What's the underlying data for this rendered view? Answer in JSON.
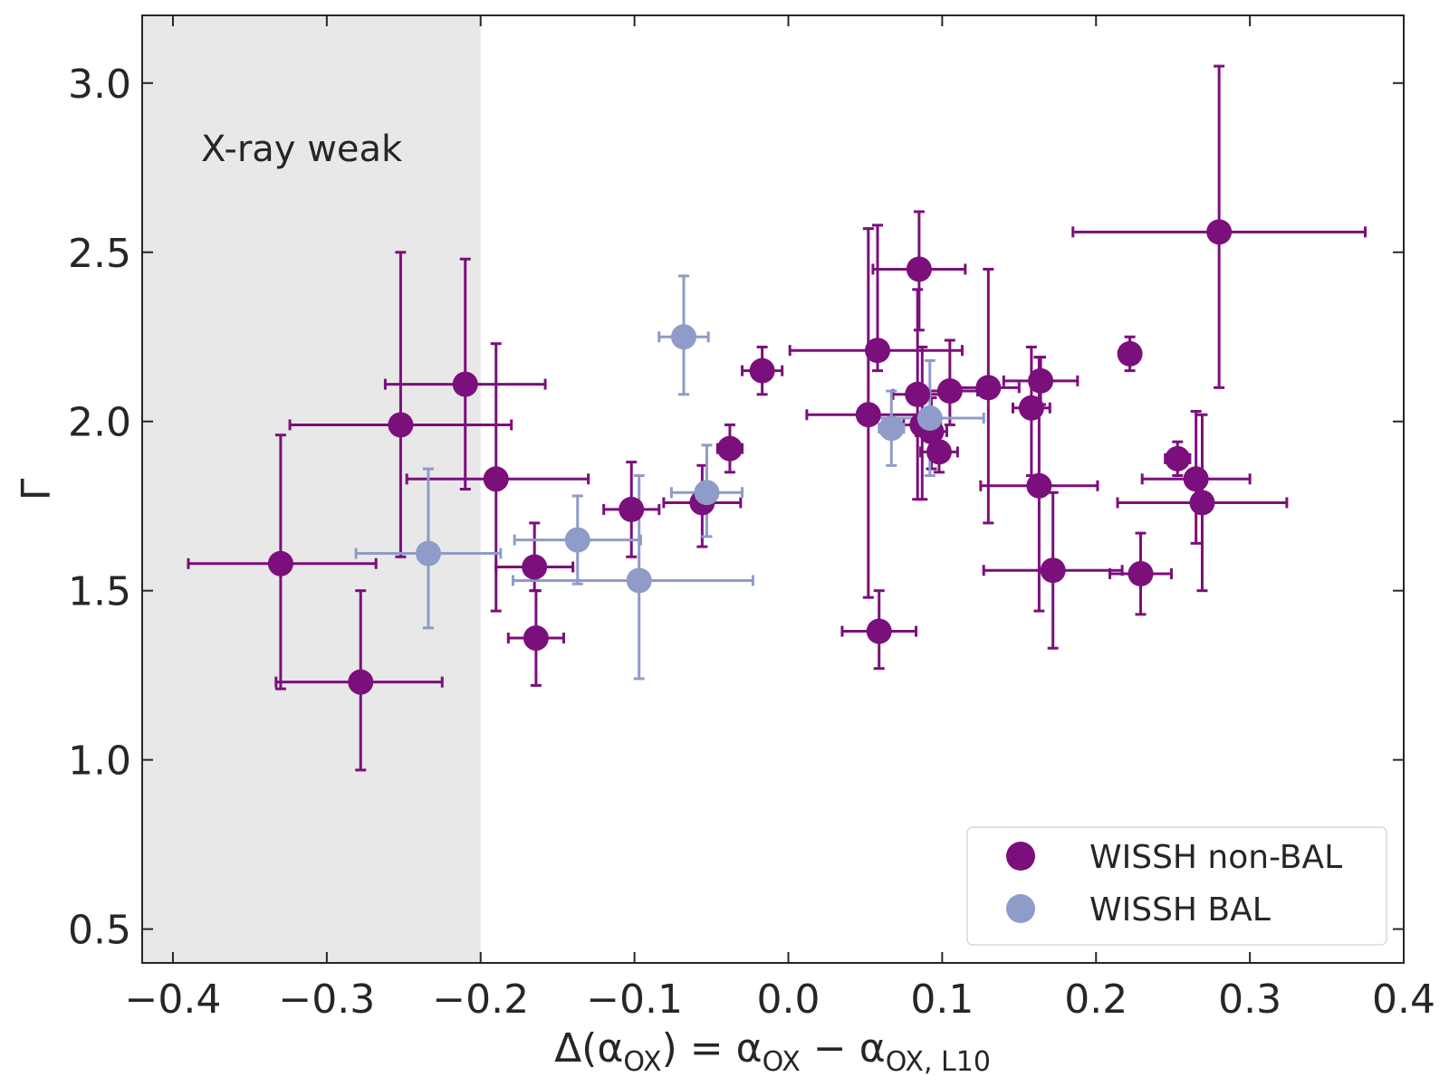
{
  "chart_data": {
    "type": "scatter",
    "title": "",
    "xlabel": {
      "main": "Δ(α",
      "sub1": "OX",
      "mid": ") = α",
      "sub2": "OX",
      "mid2": " − α",
      "sub3": "OX, L10"
    },
    "ylabel": "Γ",
    "xlim": [
      -0.42,
      0.4
    ],
    "ylim": [
      0.4,
      3.2
    ],
    "xticks": [
      -0.4,
      -0.3,
      -0.2,
      -0.1,
      0.0,
      0.1,
      0.2,
      0.3,
      0.4
    ],
    "xtick_labels": [
      "−0.4",
      "−0.3",
      "−0.2",
      "−0.1",
      "0.0",
      "0.1",
      "0.2",
      "0.3",
      "0.4"
    ],
    "yticks": [
      0.5,
      1.0,
      1.5,
      2.0,
      2.5,
      3.0
    ],
    "ytick_labels": [
      "0.5",
      "1.0",
      "1.5",
      "2.0",
      "2.5",
      "3.0"
    ],
    "grid": false,
    "shaded_region": {
      "x": [
        -0.42,
        -0.2
      ],
      "label": "X-ray weak",
      "color": "#e8e8e8"
    },
    "legend_position": "bottom-right",
    "series": [
      {
        "name": "WISSH non-BAL",
        "color": "#7b0f7b",
        "points": [
          {
            "x": -0.33,
            "y": 1.58,
            "xl": 0.06,
            "xh": 0.062,
            "yl": 0.37,
            "yh": 0.38
          },
          {
            "x": -0.278,
            "y": 1.23,
            "xl": 0.055,
            "xh": 0.053,
            "yl": 0.26,
            "yh": 0.27
          },
          {
            "x": -0.252,
            "y": 1.99,
            "xl": 0.072,
            "xh": 0.072,
            "yl": 0.39,
            "yh": 0.51
          },
          {
            "x": -0.21,
            "y": 2.11,
            "xl": 0.052,
            "xh": 0.052,
            "yl": 0.31,
            "yh": 0.37
          },
          {
            "x": -0.19,
            "y": 1.83,
            "xl": 0.058,
            "xh": 0.06,
            "yl": 0.39,
            "yh": 0.4
          },
          {
            "x": -0.165,
            "y": 1.57,
            "xl": 0.025,
            "xh": 0.025,
            "yl": 0.07,
            "yh": 0.13
          },
          {
            "x": -0.164,
            "y": 1.36,
            "xl": 0.018,
            "xh": 0.018,
            "yl": 0.14,
            "yh": 0.14
          },
          {
            "x": -0.102,
            "y": 1.74,
            "xl": 0.018,
            "xh": 0.018,
            "yl": 0.14,
            "yh": 0.14
          },
          {
            "x": -0.056,
            "y": 1.76,
            "xl": 0.025,
            "xh": 0.025,
            "yl": 0.13,
            "yh": 0.11
          },
          {
            "x": -0.038,
            "y": 1.92,
            "xl": 0.008,
            "xh": 0.008,
            "yl": 0.07,
            "yh": 0.07
          },
          {
            "x": -0.017,
            "y": 2.15,
            "xl": 0.013,
            "xh": 0.013,
            "yl": 0.07,
            "yh": 0.07
          },
          {
            "x": 0.052,
            "y": 2.02,
            "xl": 0.04,
            "xh": 0.04,
            "yl": 0.54,
            "yh": 0.55
          },
          {
            "x": 0.058,
            "y": 2.21,
            "xl": 0.057,
            "xh": 0.055,
            "yl": 0.06,
            "yh": 0.37
          },
          {
            "x": 0.059,
            "y": 1.38,
            "xl": 0.024,
            "xh": 0.024,
            "yl": 0.11,
            "yh": 0.12
          },
          {
            "x": 0.085,
            "y": 2.45,
            "xl": 0.03,
            "xh": 0.03,
            "yl": 0.18,
            "yh": 0.17
          },
          {
            "x": 0.084,
            "y": 2.08,
            "xl": 0.016,
            "xh": 0.016,
            "yl": 0.31,
            "yh": 0.31
          },
          {
            "x": 0.087,
            "y": 1.99,
            "xl": 0.012,
            "xh": 0.012,
            "yl": 0.22,
            "yh": 0.23
          },
          {
            "x": 0.093,
            "y": 1.97,
            "xl": 0.01,
            "xh": 0.01,
            "yl": 0.11,
            "yh": 0.1
          },
          {
            "x": 0.098,
            "y": 1.91,
            "xl": 0.012,
            "xh": 0.012,
            "yl": 0.06,
            "yh": 0.06
          },
          {
            "x": 0.105,
            "y": 2.09,
            "xl": 0.018,
            "xh": 0.018,
            "yl": 0.1,
            "yh": 0.15
          },
          {
            "x": 0.13,
            "y": 2.1,
            "xl": 0.02,
            "xh": 0.02,
            "yl": 0.4,
            "yh": 0.35
          },
          {
            "x": 0.158,
            "y": 2.04,
            "xl": 0.012,
            "xh": 0.012,
            "yl": 0.2,
            "yh": 0.18
          },
          {
            "x": 0.164,
            "y": 2.12,
            "xl": 0.024,
            "xh": 0.024,
            "yl": 0.07,
            "yh": 0.07
          },
          {
            "x": 0.163,
            "y": 1.81,
            "xl": 0.038,
            "xh": 0.038,
            "yl": 0.37,
            "yh": 0.38
          },
          {
            "x": 0.172,
            "y": 1.56,
            "xl": 0.045,
            "xh": 0.045,
            "yl": 0.23,
            "yh": 0.23
          },
          {
            "x": 0.222,
            "y": 2.2,
            "xl": 0.006,
            "xh": 0.006,
            "yl": 0.05,
            "yh": 0.05
          },
          {
            "x": 0.229,
            "y": 1.55,
            "xl": 0.02,
            "xh": 0.02,
            "yl": 0.12,
            "yh": 0.12
          },
          {
            "x": 0.253,
            "y": 1.89,
            "xl": 0.008,
            "xh": 0.008,
            "yl": 0.05,
            "yh": 0.05
          },
          {
            "x": 0.265,
            "y": 1.83,
            "xl": 0.035,
            "xh": 0.035,
            "yl": 0.19,
            "yh": 0.2
          },
          {
            "x": 0.269,
            "y": 1.76,
            "xl": 0.055,
            "xh": 0.055,
            "yl": 0.26,
            "yh": 0.26
          },
          {
            "x": 0.28,
            "y": 2.56,
            "xl": 0.095,
            "xh": 0.095,
            "yl": 0.46,
            "yh": 0.49
          }
        ]
      },
      {
        "name": "WISSH BAL",
        "color": "#8f9bc8",
        "points": [
          {
            "x": -0.234,
            "y": 1.61,
            "xl": 0.047,
            "xh": 0.047,
            "yl": 0.22,
            "yh": 0.25
          },
          {
            "x": -0.137,
            "y": 1.65,
            "xl": 0.041,
            "xh": 0.041,
            "yl": 0.13,
            "yh": 0.13
          },
          {
            "x": -0.097,
            "y": 1.53,
            "xl": 0.082,
            "xh": 0.074,
            "yl": 0.29,
            "yh": 0.31
          },
          {
            "x": -0.068,
            "y": 2.25,
            "xl": 0.016,
            "xh": 0.016,
            "yl": 0.17,
            "yh": 0.18
          },
          {
            "x": -0.053,
            "y": 1.79,
            "xl": 0.023,
            "xh": 0.023,
            "yl": 0.13,
            "yh": 0.14
          },
          {
            "x": 0.067,
            "y": 1.98,
            "xl": 0.008,
            "xh": 0.008,
            "yl": 0.11,
            "yh": 0.11
          },
          {
            "x": 0.092,
            "y": 2.01,
            "xl": 0.035,
            "xh": 0.035,
            "yl": 0.17,
            "yh": 0.17
          }
        ]
      }
    ]
  }
}
